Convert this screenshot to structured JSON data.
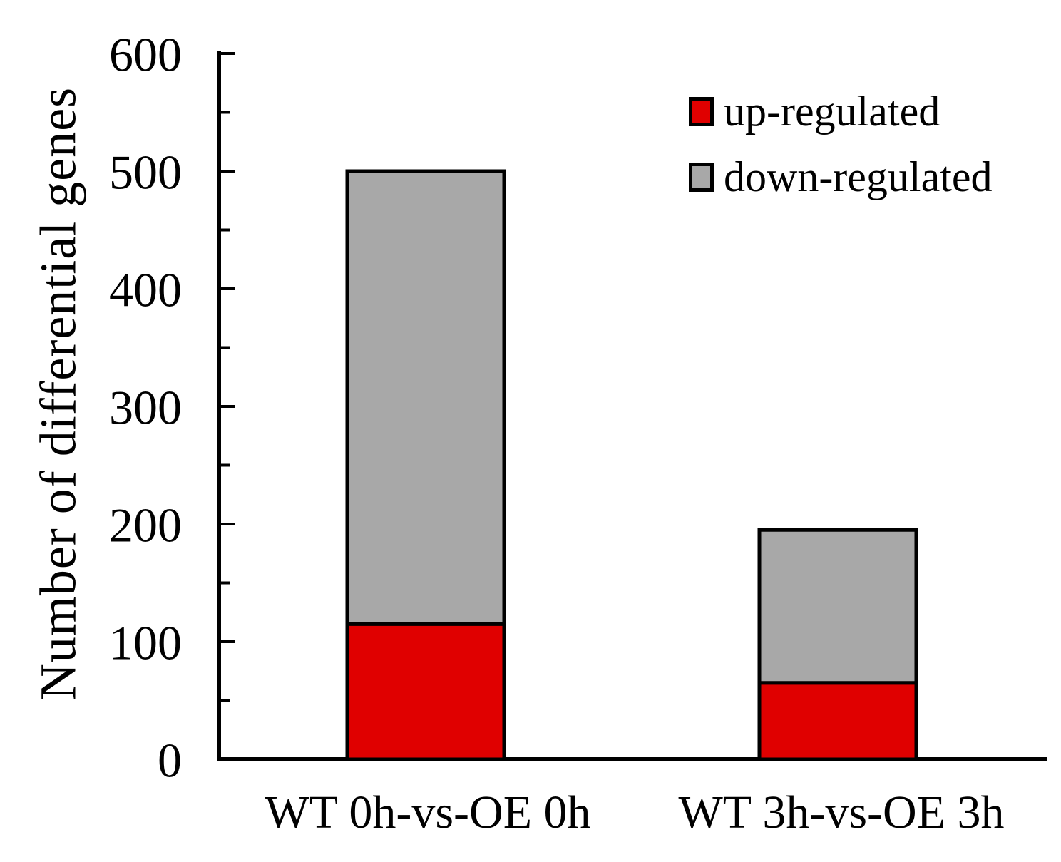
{
  "chart_data": {
    "type": "bar",
    "stacked": true,
    "title": "",
    "xlabel": "",
    "ylabel": "Number of differential genes",
    "categories": [
      "WT 0h-vs-OE 0h",
      "WT 3h-vs-OE 3h"
    ],
    "series": [
      {
        "name": "up-regulated",
        "color": "#e00000",
        "values": [
          115,
          65
        ]
      },
      {
        "name": "down-regulated",
        "color": "#a8a8a8",
        "values": [
          385,
          130
        ]
      }
    ],
    "stack_totals": [
      500,
      195
    ],
    "yaxis": {
      "min": 0,
      "max": 600,
      "major_tick": 100,
      "minor_tick": 50,
      "tick_labels": [
        "0",
        "100",
        "200",
        "300",
        "400",
        "500",
        "600"
      ]
    },
    "legend_position": "top-right",
    "grid": false,
    "bar_border_color": "#000000",
    "axis_color": "#000000"
  }
}
